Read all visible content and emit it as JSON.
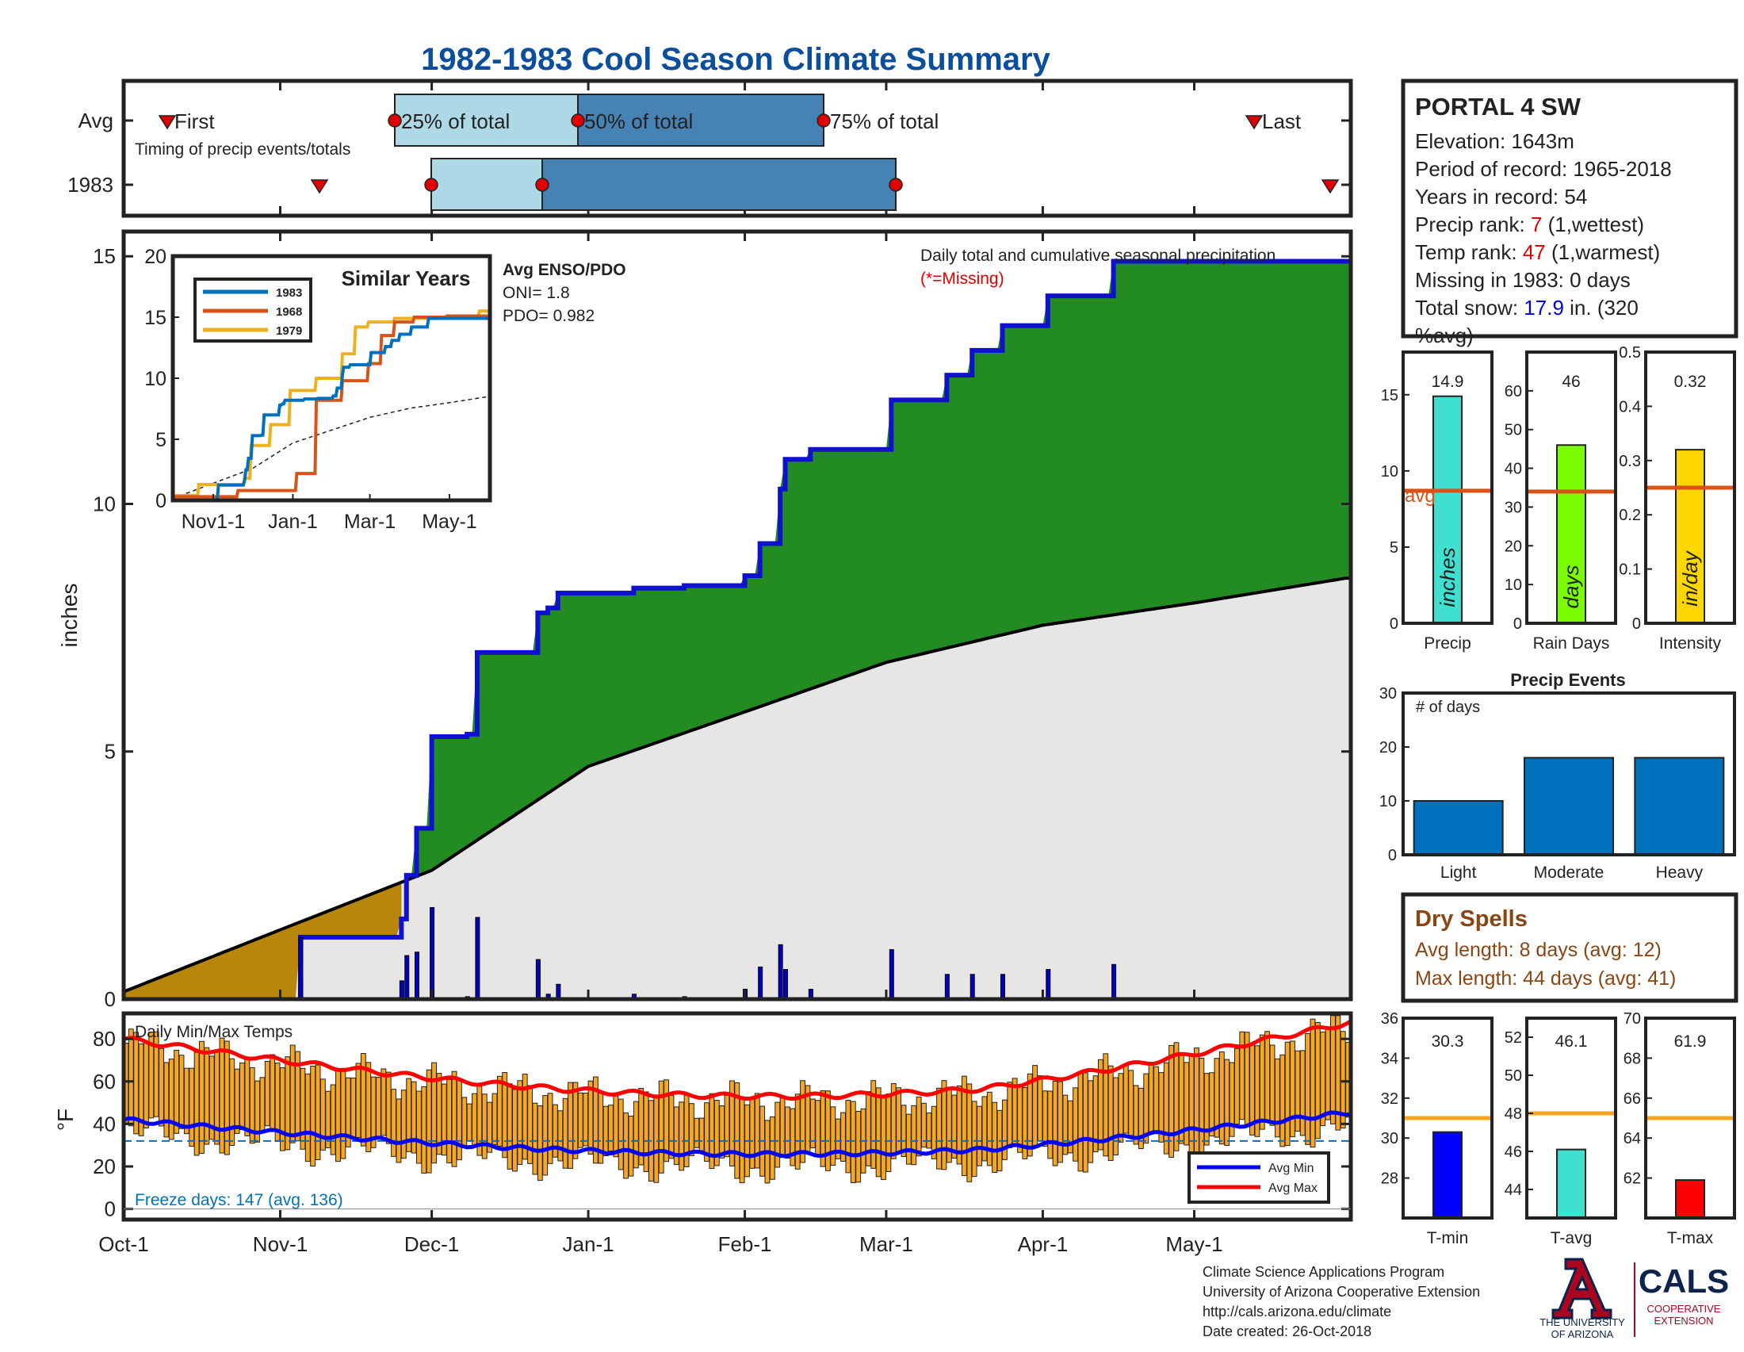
{
  "title": "1982-1983 Cool Season Climate Summary",
  "colors": {
    "title": "#0B4F9C",
    "avg_line": "#D95319",
    "green_fill": "#228B22",
    "brown_fill": "#B8860B",
    "cum_line": "#1010D0",
    "gray_fill": "#E8E6E4",
    "temp_bar": "#F5A623",
    "dry_spell": "#8B4513",
    "highlight_red": "#E00000",
    "highlight_blue": "#0000E0",
    "ua_red": "#AB0520",
    "ua_navy": "#0C234B"
  },
  "station": {
    "name": "PORTAL 4 SW",
    "elevation": "Elevation: 1643m",
    "period": "Period of record: 1965-2018",
    "years": "Years in record: 54",
    "precip_rank_label": "Precip rank: ",
    "precip_rank_value": "7",
    "precip_rank_note": " (1,wettest)",
    "temp_rank_label": "Temp rank: ",
    "temp_rank_value": "47",
    "temp_rank_note": " (1,warmest)",
    "missing": "Missing in 1983: 0 days",
    "snow_label": "Total snow: ",
    "snow_value": "17.9",
    "snow_note_1": " in. (320",
    "snow_note_2": "%avg)"
  },
  "timing": {
    "row_labels": [
      "Avg",
      "1983"
    ],
    "subtitle": "Timing of precip events/totals",
    "first_label": "First",
    "last_label": "Last",
    "pct_labels": [
      "25% of total",
      "50% of total",
      "75% of total"
    ],
    "avg": {
      "first": "Oct-4",
      "q25": "Nov-25",
      "q50": "Dec-20",
      "q75": "Feb-6",
      "last": "May-20"
    },
    "y1983": {
      "first": "Nov-5",
      "q25": "Dec-1",
      "q50": "Dec-23",
      "q75": "Mar-3",
      "last": "May-31"
    }
  },
  "main": {
    "ylabel": "inches",
    "yticks": [
      "0",
      "5",
      "10",
      "15"
    ],
    "legend_title": "Daily total and cumulative seasonal precipitation",
    "missing_note": "(*=Missing)",
    "enso_title": "Avg ENSO/PDO",
    "oni": "ONI= 1.8",
    "pdo": "PDO= 0.982"
  },
  "inset": {
    "title": "Similar Years",
    "yticks": [
      "0",
      "5",
      "10",
      "15",
      "20"
    ],
    "xticks": [
      "Nov1-1",
      "Jan-1",
      "Mar-1",
      "May-1"
    ],
    "legend": [
      "1983",
      "1968",
      "1979"
    ],
    "series_colors": [
      "#0072BD",
      "#D95319",
      "#EDB120"
    ]
  },
  "temps": {
    "title": "Daily Min/Max Temps",
    "ylabel": "°F",
    "yticks": [
      "0",
      "20",
      "40",
      "60",
      "80"
    ],
    "freeze": "Freeze days: 147 (avg. 136)",
    "legend": [
      "Avg Min",
      "Avg Max"
    ],
    "xticks": [
      "Oct-1",
      "Nov-1",
      "Dec-1",
      "Jan-1",
      "Feb-1",
      "Mar-1",
      "Apr-1",
      "May-1"
    ]
  },
  "summary_bars": {
    "precip": {
      "value": 14.9,
      "label": "14.9",
      "avg": 8.7,
      "unit": "inches",
      "xlabel": "Precip",
      "color": "#40E0D0",
      "yticks": [
        "0",
        "5",
        "10",
        "15"
      ],
      "avg_label": "avg"
    },
    "rain_days": {
      "value": 46,
      "label": "46",
      "avg": 34,
      "unit": "days",
      "xlabel": "Rain Days",
      "color": "#7CFC00",
      "yticks": [
        "0",
        "10",
        "20",
        "30",
        "40",
        "50",
        "60"
      ]
    },
    "intensity": {
      "value": 0.32,
      "label": "0.32",
      "avg": 0.25,
      "unit": "in/day",
      "xlabel": "Intensity",
      "color": "#FFD700",
      "yticks": [
        "0",
        "0.1",
        "0.2",
        "0.3",
        "0.4",
        "0.5"
      ]
    }
  },
  "events": {
    "title": "Precip Events",
    "ylabel": "# of days",
    "categories": [
      "Light",
      "Moderate",
      "Heavy"
    ],
    "values": [
      10,
      18,
      18
    ],
    "yticks": [
      "0",
      "10",
      "20",
      "30"
    ]
  },
  "dry_spells": {
    "title": "Dry Spells",
    "avg": "Avg length: 8 days (avg: 12)",
    "max": "Max length: 44 days (avg: 41)"
  },
  "temp_bars": {
    "tmin": {
      "value": 30.3,
      "label": "30.3",
      "avg": 31,
      "xlabel": "T-min",
      "color": "#0000FF",
      "yticks": [
        "28",
        "30",
        "32",
        "34",
        "36"
      ]
    },
    "tavg": {
      "value": 46.1,
      "label": "46.1",
      "avg": 48,
      "xlabel": "T-avg",
      "color": "#40E0D0",
      "yticks": [
        "44",
        "46",
        "48",
        "50",
        "52"
      ]
    },
    "tmax": {
      "value": 61.9,
      "label": "61.9",
      "avg": 65,
      "xlabel": "T-max",
      "color": "#FF0000",
      "yticks": [
        "62",
        "64",
        "66",
        "68",
        "70"
      ]
    }
  },
  "footer": {
    "line1": "Climate Science Applications Program",
    "line2": "University of Arizona Cooperative Extension",
    "line3": "http://cals.arizona.edu/climate",
    "line4": " Date created: 26-Oct-2018",
    "ua1": "THE UNIVERSITY",
    "ua2": "OF ARIZONA",
    "cals": "CALS",
    "cals1": "COOPERATIVE",
    "cals2": "EXTENSION"
  },
  "chart_data": [
    {
      "type": "area",
      "title": "Daily total and cumulative seasonal precipitation",
      "ylabel": "inches",
      "ylim": [
        0,
        15.5
      ],
      "x_range": [
        "Oct-1",
        "May-31"
      ],
      "series": [
        {
          "name": "1983",
          "x": [
            "Nov-5",
            "Nov-25",
            "Nov-26",
            "Nov-28",
            "Dec-1",
            "Dec-8",
            "Dec-10",
            "Dec-22",
            "Dec-24",
            "Dec-26",
            "Jan-10",
            "Jan-20",
            "Feb-1",
            "Feb-4",
            "Feb-8",
            "Feb-9",
            "Feb-14",
            "Feb-17",
            "Feb-28",
            "Mar-2",
            "Mar-13",
            "Mar-18",
            "Mar-24",
            "Apr-2",
            "Apr-15",
            "May-31"
          ],
          "values": [
            1.25,
            1.62,
            2.5,
            3.45,
            5.3,
            5.35,
            7.0,
            7.8,
            7.9,
            8.2,
            8.3,
            8.35,
            8.55,
            9.2,
            10.3,
            10.9,
            11.1,
            11.1,
            11.1,
            12.1,
            12.6,
            13.1,
            13.6,
            14.2,
            14.9,
            14.9
          ]
        },
        {
          "name": "avg",
          "x": [
            "Oct-1",
            "Nov-1",
            "Dec-1",
            "Jan-1",
            "Feb-1",
            "Mar-1",
            "Apr-1",
            "May-1",
            "May-31"
          ],
          "values": [
            0.15,
            1.4,
            2.6,
            4.7,
            5.8,
            6.8,
            7.55,
            8.0,
            8.5
          ]
        }
      ]
    },
    {
      "type": "bar",
      "title": "Precip Events",
      "categories": [
        "Light",
        "Moderate",
        "Heavy"
      ],
      "values": [
        10,
        18,
        18
      ],
      "ylim": [
        0,
        30
      ]
    }
  ]
}
